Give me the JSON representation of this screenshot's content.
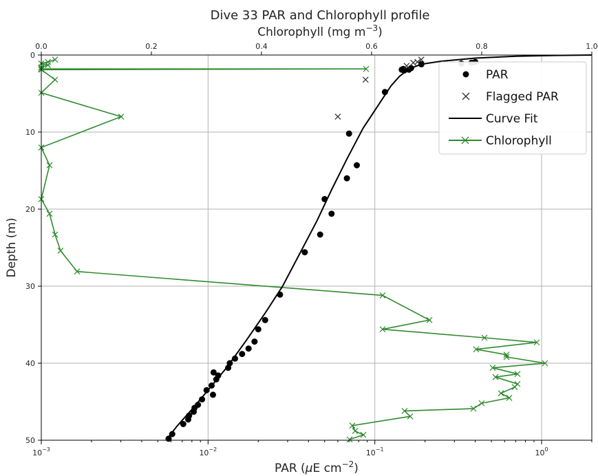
{
  "chart_data": {
    "type": "scatter",
    "title_line1": "Dive 33 PAR and Chlorophyll profile",
    "title_line2": "Chlorophyll (mg m",
    "title_line2_sup": "−3",
    "title_line2_end": ")",
    "xlabel_main": "PAR (",
    "xlabel_mu": "μ",
    "xlabel_rest": "E cm",
    "xlabel_sup": "−2",
    "xlabel_end": ")",
    "ylabel": "Depth (m)",
    "x_bottom_scale": "log",
    "x_bottom_range": [
      0.001,
      2
    ],
    "x_bottom_ticks": [
      {
        "v": 0.001,
        "base": "10",
        "exp": "−3"
      },
      {
        "v": 0.01,
        "base": "10",
        "exp": "−2"
      },
      {
        "v": 0.1,
        "base": "10",
        "exp": "−1"
      },
      {
        "v": 1,
        "base": "10",
        "exp": "0"
      }
    ],
    "x_top_range": [
      0,
      1
    ],
    "x_top_ticks": [
      "0.0",
      "0.2",
      "0.4",
      "0.6",
      "0.8",
      "1.0"
    ],
    "x_top_tick_values": [
      0,
      0.2,
      0.4,
      0.6,
      0.8,
      1.0
    ],
    "y_range": [
      0,
      50
    ],
    "y_inverted": true,
    "y_ticks": [
      "0",
      "10",
      "20",
      "30",
      "40",
      "50"
    ],
    "y_tick_values": [
      0,
      10,
      20,
      30,
      40,
      50
    ],
    "grid": true,
    "legend_position": "top-right",
    "legend": [
      "PAR",
      "Flagged PAR",
      "Curve Fit",
      "Chlorophyll"
    ],
    "colors": {
      "par": "#000000",
      "chlorophyll": "#2e8b2e",
      "grid": "#b0b0b0"
    },
    "par_points": [
      [
        0.33,
        1.1
      ],
      [
        0.38,
        1.0
      ],
      [
        0.4,
        0.9
      ],
      [
        0.19,
        1.2
      ],
      [
        0.165,
        1.7
      ],
      [
        0.16,
        1.9
      ],
      [
        0.15,
        2.0
      ],
      [
        0.148,
        1.8
      ],
      [
        0.145,
        1.9
      ],
      [
        0.115,
        4.8
      ],
      [
        0.07,
        10.2
      ],
      [
        0.068,
        16.0
      ],
      [
        0.078,
        14.3
      ],
      [
        0.055,
        20.6
      ],
      [
        0.05,
        18.7
      ],
      [
        0.047,
        23.3
      ],
      [
        0.038,
        25.6
      ],
      [
        0.027,
        31.1
      ],
      [
        0.022,
        34.4
      ],
      [
        0.02,
        35.6
      ],
      [
        0.019,
        37.2
      ],
      [
        0.0175,
        38.1
      ],
      [
        0.016,
        38.8
      ],
      [
        0.0145,
        39.4
      ],
      [
        0.0135,
        40.0
      ],
      [
        0.0132,
        40.6
      ],
      [
        0.0115,
        41.6
      ],
      [
        0.0112,
        42.1
      ],
      [
        0.0108,
        41.2
      ],
      [
        0.0105,
        42.9
      ],
      [
        0.0098,
        43.5
      ],
      [
        0.0107,
        44.1
      ],
      [
        0.0092,
        44.7
      ],
      [
        0.0087,
        45.4
      ],
      [
        0.0083,
        45.8
      ],
      [
        0.0082,
        46.3
      ],
      [
        0.0077,
        46.8
      ],
      [
        0.0076,
        47.3
      ],
      [
        0.0071,
        47.9
      ],
      [
        0.0061,
        49.2
      ],
      [
        0.0058,
        49.8
      ]
    ],
    "flagged_par": [
      [
        0.19,
        0.6
      ],
      [
        0.18,
        0.9
      ],
      [
        0.17,
        1.0
      ],
      [
        0.155,
        1.4
      ],
      [
        0.088,
        3.2
      ],
      [
        0.06,
        8.0
      ]
    ],
    "curve_fit": [
      [
        2.0,
        0.0
      ],
      [
        1.2,
        0.05
      ],
      [
        0.7,
        0.15
      ],
      [
        0.4,
        0.4
      ],
      [
        0.25,
        0.8
      ],
      [
        0.19,
        1.2
      ],
      [
        0.16,
        1.8
      ],
      [
        0.14,
        2.8
      ],
      [
        0.125,
        4.0
      ],
      [
        0.105,
        6.5
      ],
      [
        0.085,
        9.5
      ],
      [
        0.068,
        13.5
      ],
      [
        0.055,
        17.5
      ],
      [
        0.045,
        21.5
      ],
      [
        0.036,
        25.5
      ],
      [
        0.028,
        30.0
      ],
      [
        0.022,
        33.5
      ],
      [
        0.017,
        37.0
      ],
      [
        0.013,
        40.5
      ],
      [
        0.01,
        43.5
      ],
      [
        0.008,
        46.0
      ],
      [
        0.0065,
        48.2
      ],
      [
        0.0056,
        50.0
      ]
    ],
    "chlorophyll": [
      [
        0.025,
        0.6
      ],
      [
        0.012,
        0.9
      ],
      [
        0.0,
        1.1
      ],
      [
        0.012,
        1.3
      ],
      [
        0.0,
        1.6
      ],
      [
        0.0,
        1.8
      ],
      [
        0.59,
        1.8
      ],
      [
        0.0,
        1.9
      ],
      [
        0.025,
        3.2
      ],
      [
        0.0,
        4.9
      ],
      [
        0.145,
        8.0
      ],
      [
        0.0,
        12.0
      ],
      [
        0.015,
        14.3
      ],
      [
        0.0,
        18.7
      ],
      [
        0.015,
        20.6
      ],
      [
        0.025,
        23.3
      ],
      [
        0.035,
        25.4
      ],
      [
        0.065,
        28.1
      ],
      [
        0.62,
        31.2
      ],
      [
        0.705,
        34.4
      ],
      [
        0.62,
        35.6
      ],
      [
        0.805,
        36.7
      ],
      [
        0.9,
        37.3
      ],
      [
        0.79,
        38.2
      ],
      [
        0.845,
        38.9
      ],
      [
        0.845,
        39.2
      ],
      [
        0.915,
        40.0
      ],
      [
        0.82,
        40.6
      ],
      [
        0.865,
        41.4
      ],
      [
        0.825,
        41.8
      ],
      [
        0.865,
        42.7
      ],
      [
        0.86,
        43.1
      ],
      [
        0.835,
        43.9
      ],
      [
        0.85,
        44.5
      ],
      [
        0.8,
        45.2
      ],
      [
        0.785,
        45.9
      ],
      [
        0.66,
        46.2
      ],
      [
        0.67,
        46.9
      ],
      [
        0.565,
        48.1
      ],
      [
        0.57,
        48.8
      ],
      [
        0.585,
        49.3
      ],
      [
        0.56,
        49.9
      ]
    ]
  }
}
